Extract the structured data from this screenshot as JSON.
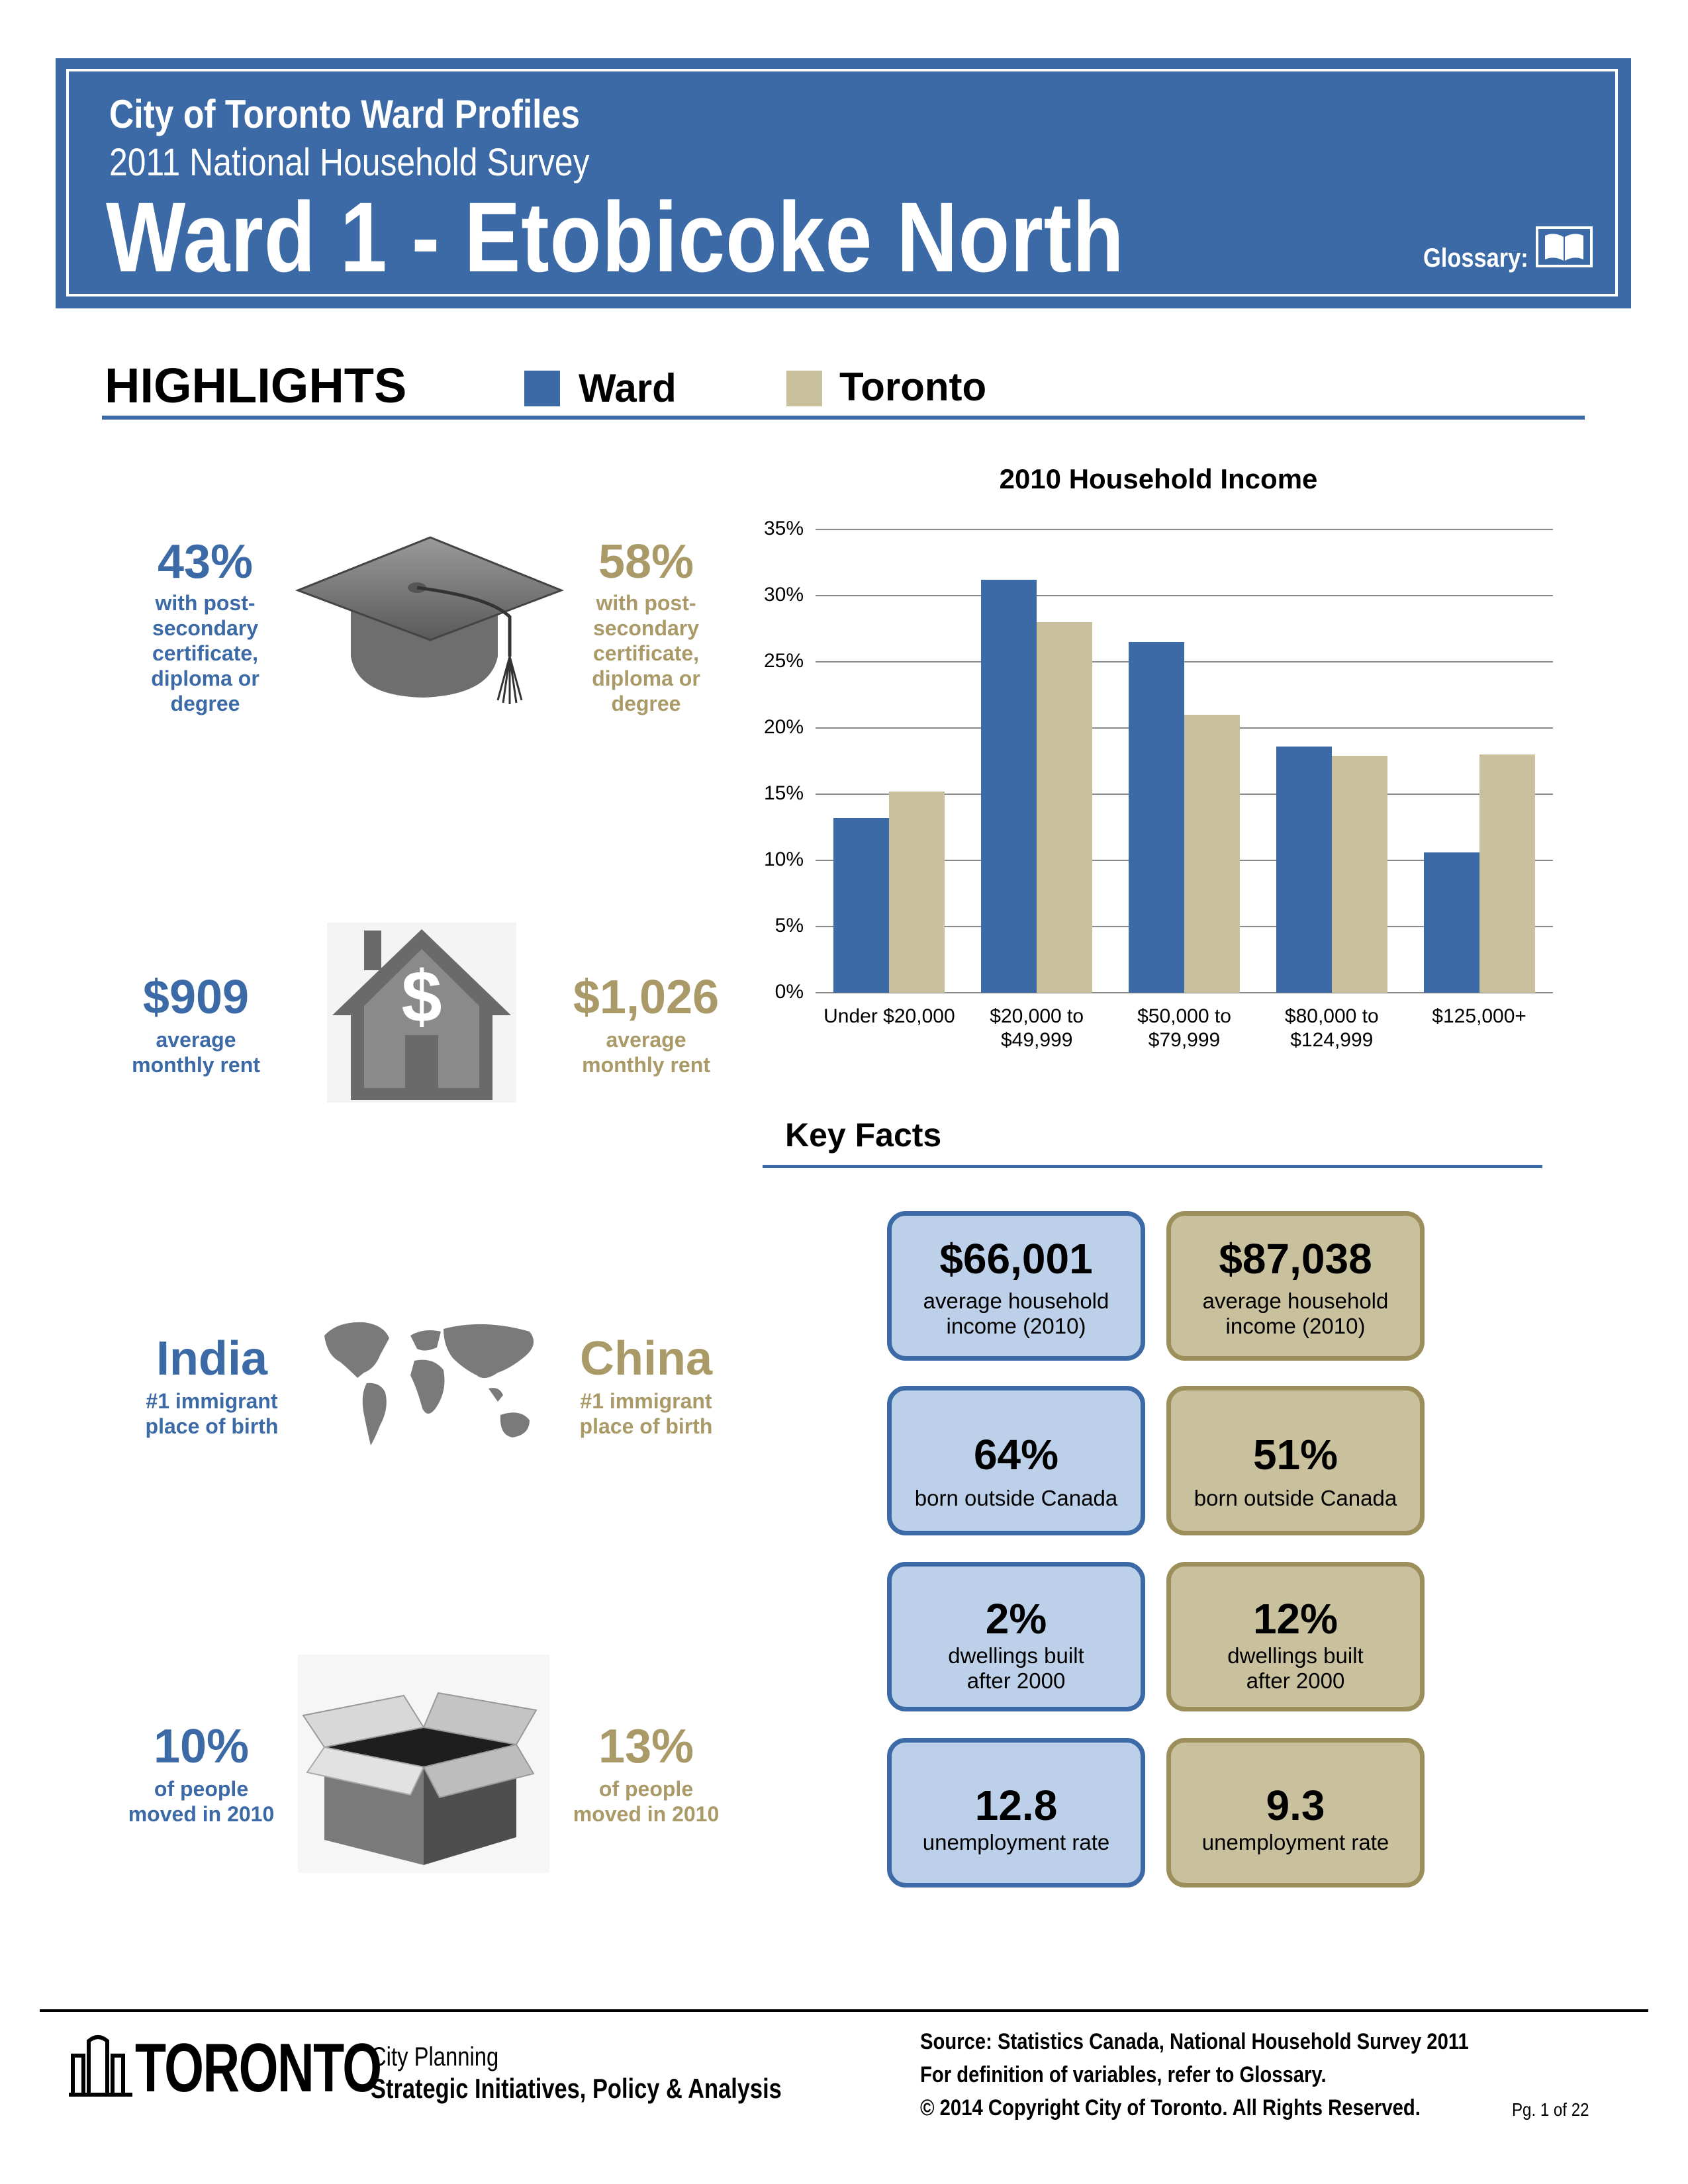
{
  "header": {
    "line1": "City of Toronto Ward Profiles",
    "line2": "2011 National Household Survey",
    "title": "Ward 1 - Etobicoke North",
    "glossary_label": "Glossary:"
  },
  "highlights": {
    "title": "HIGHLIGHTS",
    "legend_ward": "Ward",
    "legend_toronto": "Toronto",
    "colors": {
      "ward": "#3c6aa6",
      "toronto": "#c9c19d",
      "toronto_text": "#a99a68"
    },
    "education": {
      "ward_value": "43%",
      "toronto_value": "58%",
      "label": [
        "with post-",
        "secondary",
        "certificate,",
        "diploma or",
        "degree"
      ],
      "icon": "graduation-cap-icon"
    },
    "rent": {
      "ward_value": "$909",
      "toronto_value": "$1,026",
      "label": [
        "average",
        "monthly rent"
      ],
      "icon": "house-dollar-icon"
    },
    "immigrant": {
      "ward_value": "India",
      "toronto_value": "China",
      "label": [
        "#1 immigrant",
        "place of birth"
      ],
      "icon": "world-map-icon"
    },
    "moved": {
      "ward_value": "10%",
      "toronto_value": "13%",
      "label": [
        "of people",
        "moved in 2010"
      ],
      "icon": "open-box-icon"
    }
  },
  "chart_data": {
    "type": "bar",
    "title": "2010 Household Income",
    "categories": [
      [
        "Under $20,000"
      ],
      [
        "$20,000 to",
        "$49,999"
      ],
      [
        "$50,000 to",
        "$79,999"
      ],
      [
        "$80,000 to",
        "$124,999"
      ],
      [
        "$125,000+"
      ]
    ],
    "series": [
      {
        "name": "Ward",
        "color": "#3c6aa6",
        "values": [
          13.2,
          31.2,
          26.5,
          18.6,
          10.6
        ]
      },
      {
        "name": "Toronto",
        "color": "#c9c19d",
        "values": [
          15.2,
          28.0,
          21.0,
          17.9,
          18.0
        ]
      }
    ],
    "yticks": [
      "0%",
      "5%",
      "10%",
      "15%",
      "20%",
      "25%",
      "30%",
      "35%"
    ],
    "ylim": [
      0,
      35
    ],
    "grid": true
  },
  "key_facts": {
    "title": "Key Facts",
    "cards": [
      {
        "ward": {
          "value": "$66,001",
          "label": [
            "average household",
            "income (2010)"
          ]
        },
        "toronto": {
          "value": "$87,038",
          "label": [
            "average household",
            "income (2010)"
          ]
        }
      },
      {
        "ward": {
          "value": "64%",
          "label": [
            "born outside Canada"
          ]
        },
        "toronto": {
          "value": "51%",
          "label": [
            "born outside Canada"
          ]
        }
      },
      {
        "ward": {
          "value": "2%",
          "label": [
            "dwellings built",
            "after 2000"
          ]
        },
        "toronto": {
          "value": "12%",
          "label": [
            "dwellings built",
            "after 2000"
          ]
        }
      },
      {
        "ward": {
          "value": "12.8",
          "label": [
            "unemployment rate"
          ]
        },
        "toronto": {
          "value": "9.3",
          "label": [
            "unemployment rate"
          ]
        }
      }
    ]
  },
  "footer": {
    "logo_text": "TORONTO",
    "dept_line1": "City Planning",
    "dept_line2": "Strategic Initiatives, Policy & Analysis",
    "source": "Source: Statistics Canada, National Household Survey 2011",
    "definition": "For definition of variables, refer to Glossary.",
    "copyright": "© 2014 Copyright City of Toronto.  All Rights Reserved.",
    "page": "Pg. 1 of 22"
  }
}
